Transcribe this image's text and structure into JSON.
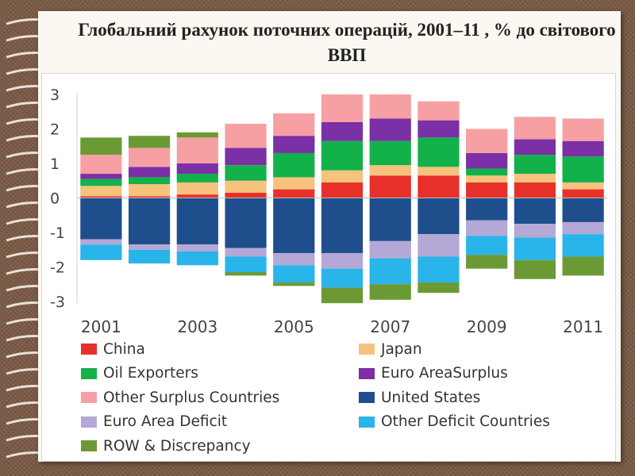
{
  "title": "Глобальний рахунок поточних операцій, 2001–11 , % до світового ВВП",
  "chart_data": {
    "type": "bar",
    "stacked": true,
    "title": "Глобальний рахунок поточних операцій, 2001–11 , % до світового ВВП",
    "xlabel": "",
    "ylabel": "",
    "ylim": [
      -3,
      3
    ],
    "yticks": [
      "3",
      "2",
      "1",
      "0",
      "-1",
      "-2",
      "-3"
    ],
    "yticks_values": [
      3,
      2,
      1,
      0,
      -1,
      -2,
      -3
    ],
    "categories": [
      "2001",
      "2002",
      "2003",
      "2004",
      "2005",
      "2006",
      "2007",
      "2008",
      "2009",
      "2010",
      "2011"
    ],
    "xtick_labels": [
      "2001",
      "2003",
      "2005",
      "2007",
      "2009",
      "2011"
    ],
    "grid": false,
    "legend_position": "bottom",
    "series": [
      {
        "name": "China",
        "color": "#e8302a",
        "values": [
          0.05,
          0.05,
          0.1,
          0.15,
          0.25,
          0.45,
          0.65,
          0.65,
          0.45,
          0.45,
          0.25
        ]
      },
      {
        "name": "Japan",
        "color": "#f6c27c",
        "values": [
          0.3,
          0.35,
          0.35,
          0.35,
          0.35,
          0.35,
          0.3,
          0.25,
          0.2,
          0.25,
          0.2
        ]
      },
      {
        "name": "Oil Exporters",
        "color": "#12b14a",
        "values": [
          0.2,
          0.2,
          0.25,
          0.45,
          0.7,
          0.85,
          0.7,
          0.85,
          0.2,
          0.55,
          0.75
        ]
      },
      {
        "name": "Euro AreaSurplus",
        "color": "#7b30a6",
        "values": [
          0.15,
          0.3,
          0.3,
          0.5,
          0.5,
          0.55,
          0.65,
          0.5,
          0.45,
          0.45,
          0.45
        ]
      },
      {
        "name": "Other Surplus Countries",
        "color": "#f7a0a3",
        "values": [
          0.55,
          0.55,
          0.75,
          0.7,
          0.65,
          0.8,
          0.7,
          0.55,
          0.7,
          0.65,
          0.65
        ]
      },
      {
        "name": "United States",
        "color": "#1f4e8c",
        "values": [
          -1.2,
          -1.35,
          -1.35,
          -1.45,
          -1.6,
          -1.6,
          -1.25,
          -1.05,
          -0.65,
          -0.75,
          -0.7
        ]
      },
      {
        "name": "Euro Area Deficit",
        "color": "#b3a8d6",
        "values": [
          -0.15,
          -0.15,
          -0.2,
          -0.25,
          -0.35,
          -0.45,
          -0.5,
          -0.65,
          -0.45,
          -0.4,
          -0.35
        ]
      },
      {
        "name": "Other Deficit Countries",
        "color": "#29b4ea",
        "values": [
          -0.45,
          -0.4,
          -0.4,
          -0.45,
          -0.5,
          -0.55,
          -0.75,
          -0.75,
          -0.55,
          -0.65,
          -0.65
        ]
      },
      {
        "name": "ROW & Discrepancy",
        "color": "#6b9a34",
        "values": [
          0.5,
          0.35,
          0.15,
          -0.1,
          -0.1,
          -0.45,
          -0.45,
          -0.3,
          -0.4,
          -0.55,
          -0.55
        ]
      }
    ]
  }
}
